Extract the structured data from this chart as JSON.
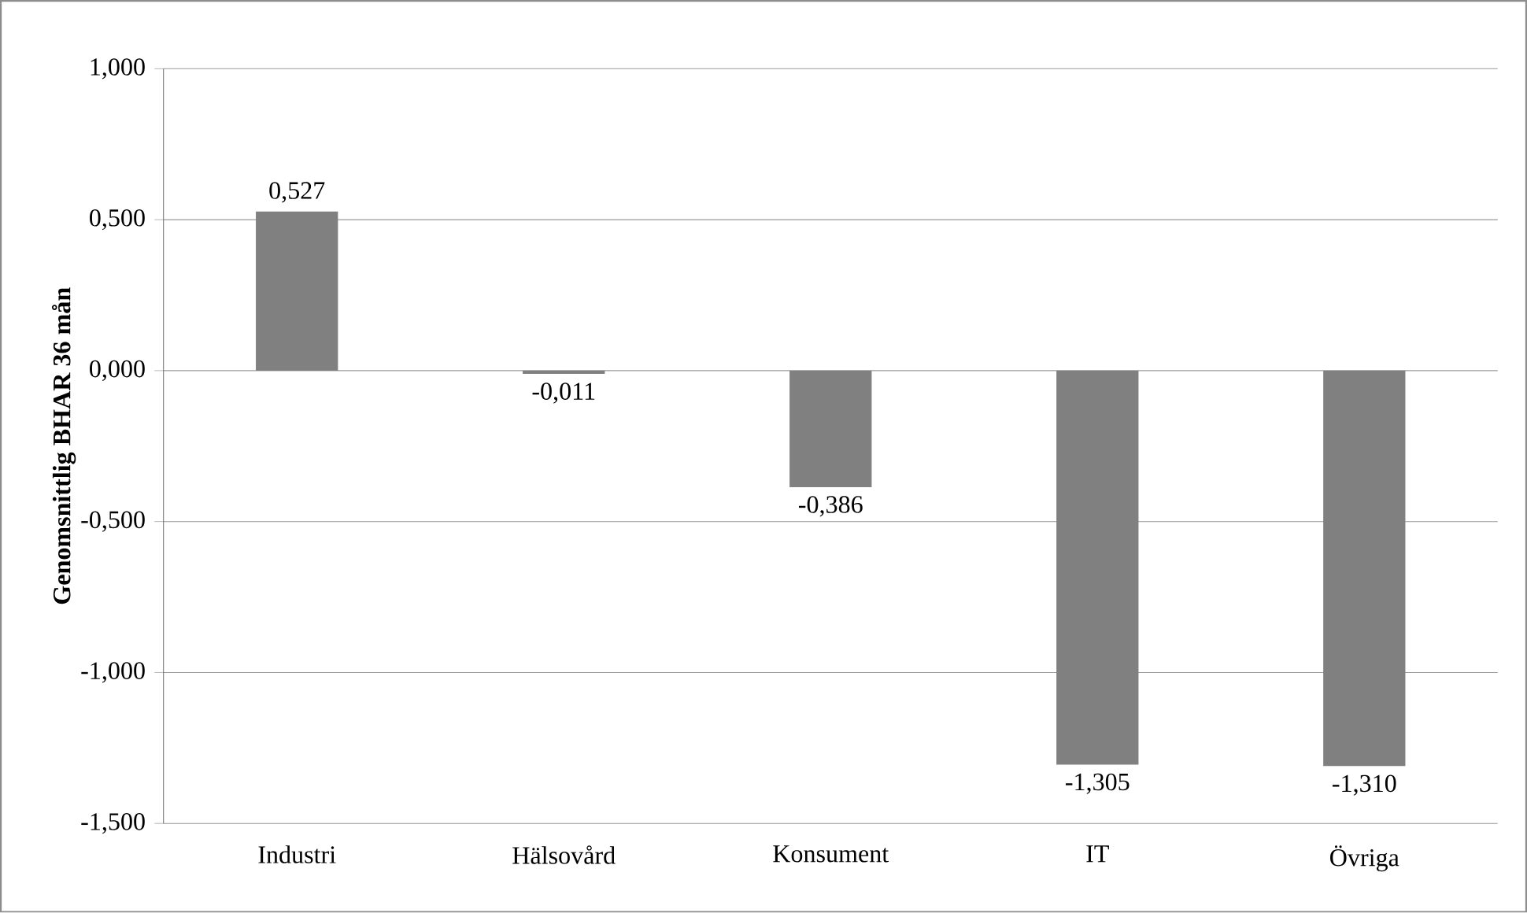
{
  "chart_data": {
    "type": "bar",
    "ylabel": "**Genomsnittlig BHAR 36 mån**",
    "categories": [
      "Industri",
      "Hälsovård",
      "Konsument",
      "IT",
      "Övriga"
    ],
    "values": [
      0.527,
      -0.011,
      -0.386,
      -1.305,
      -1.31
    ],
    "value_labels": [
      "0,527",
      "-0,011",
      "-0,386",
      "-1,305",
      "-1,310"
    ],
    "color": "#808080",
    "ylim": [
      -1.5,
      1.0
    ],
    "yticks": [
      {
        "value": -1.5,
        "label": "-1,500"
      },
      {
        "value": -1.0,
        "label": "-1,000"
      },
      {
        "value": -0.5,
        "label": "-0,500"
      },
      {
        "value": 0,
        "label": "0,000"
      },
      {
        "value": 0.5,
        "label": "0,500"
      },
      {
        "value": 1.0,
        "label": "1,000"
      }
    ],
    "grid": "y"
  }
}
